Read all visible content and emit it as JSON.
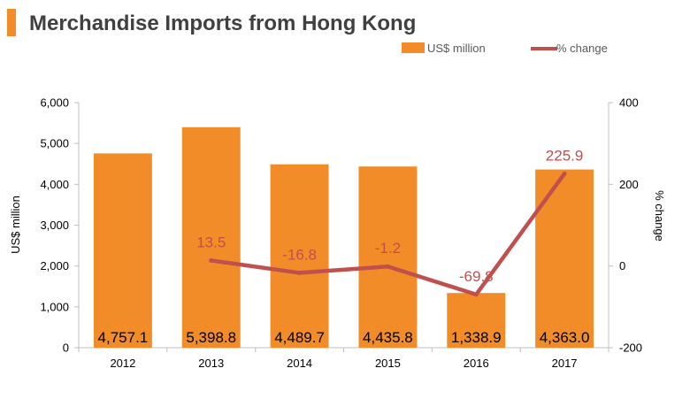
{
  "accent_color": "#F28C28",
  "line_color": "#C0504D",
  "chart_data": {
    "type": "bar",
    "title": "Merchandise Imports from Hong Kong",
    "categories": [
      "2012",
      "2013",
      "2014",
      "2015",
      "2016",
      "2017"
    ],
    "series": [
      {
        "name": "US$ million",
        "type": "bar",
        "axis": "left",
        "values": [
          4757.1,
          5398.8,
          4489.7,
          4435.8,
          1338.9,
          4363.0
        ],
        "labels": [
          "4,757.1",
          "5,398.8",
          "4,489.7",
          "4,435.8",
          "1,338.9",
          "4,363.0"
        ]
      },
      {
        "name": "% change",
        "type": "line",
        "axis": "right",
        "values": [
          null,
          13.5,
          -16.8,
          -1.2,
          -69.8,
          225.9
        ],
        "labels": [
          "",
          "13.5",
          "-16.8",
          "-1.2",
          "-69.8",
          "225.9"
        ]
      }
    ],
    "ylabel": "US$ million",
    "y2label": "% change",
    "ylim": [
      0,
      6000
    ],
    "y2lim": [
      -200,
      400
    ],
    "yticks": [
      "0",
      "1,000",
      "2,000",
      "3,000",
      "4,000",
      "5,000",
      "6,000"
    ],
    "y2ticks": [
      "-200",
      "0",
      "200",
      "400"
    ],
    "legend": "top-right",
    "grid": false
  }
}
